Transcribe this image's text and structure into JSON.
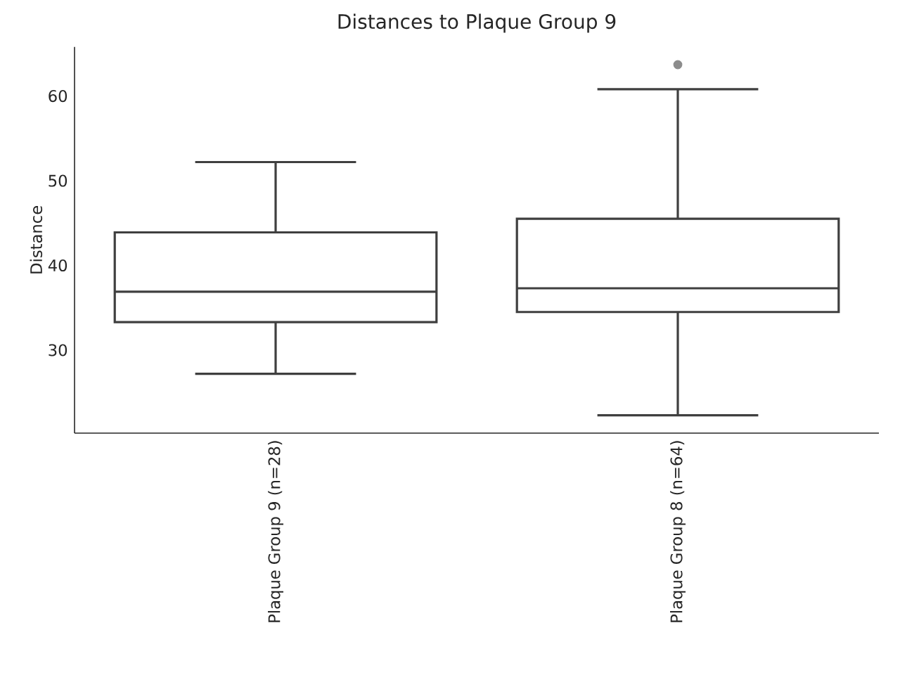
{
  "chart_data": {
    "type": "box",
    "title": "Distances to Plaque Group 9",
    "ylabel": "Distance",
    "categories": [
      "Plaque Group 9 (n=28)",
      "Plaque Group 8 (n=64)"
    ],
    "boxes": [
      {
        "low": 27.2,
        "q1": 33.3,
        "median": 36.9,
        "q3": 43.9,
        "high": 52.2
      },
      {
        "low": 22.3,
        "q1": 34.5,
        "median": 37.3,
        "q3": 45.5,
        "high": 60.8,
        "outliers": [
          63.7
        ]
      }
    ],
    "ylim": [
      20.2,
      65.8
    ],
    "yticks": [
      30,
      40,
      50,
      60
    ]
  }
}
